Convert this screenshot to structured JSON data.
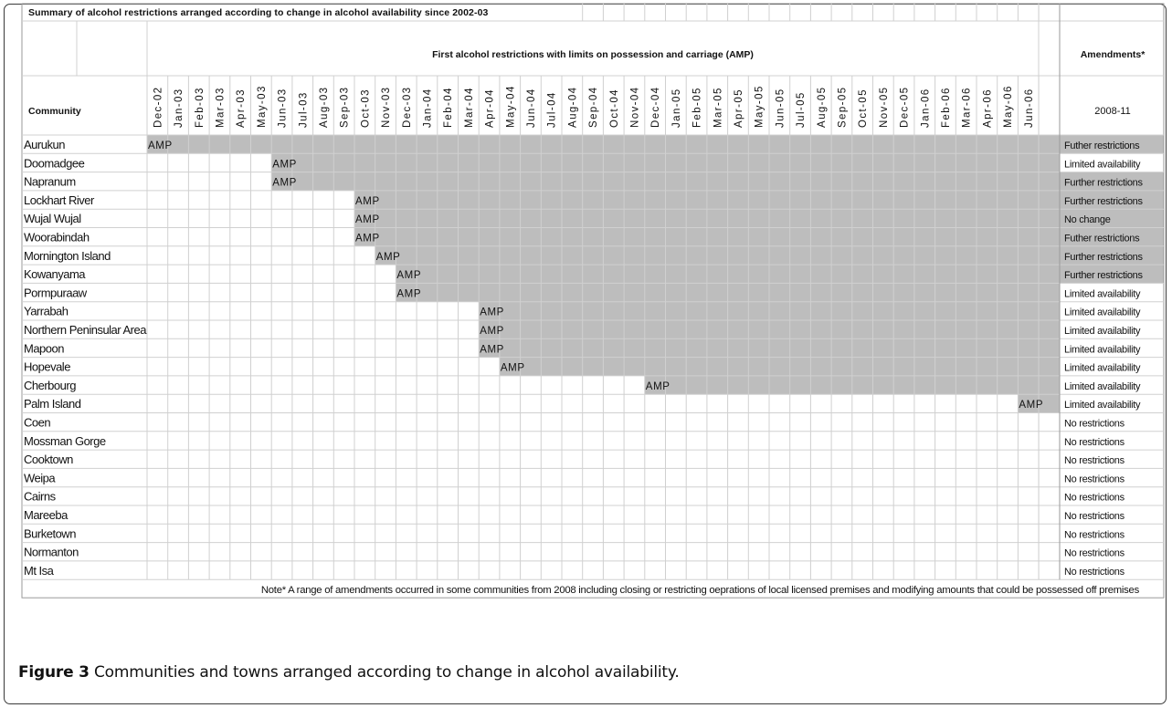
{
  "table": {
    "title": "Summary of alcohol restrictions arranged according to change in alcohol availability since 2002-03",
    "group_header": "First alcohol restrictions with limits on possession and carriage (AMP)",
    "amendments_header": "Amendments*",
    "community_header": "Community",
    "amendments_period": "2008-11",
    "months": [
      "Dec-02",
      "Jan-03",
      "Feb-03",
      "Mar-03",
      "Apr-03",
      "May-03",
      "Jun-03",
      "Jul-03",
      "Aug-03",
      "Sep-03",
      "Oct-03",
      "Nov-03",
      "Dec-03",
      "Jan-04",
      "Feb-04",
      "Mar-04",
      "Apr-04",
      "May-04",
      "Jun-04",
      "Jul-04",
      "Aug-04",
      "Sep-04",
      "Oct-04",
      "Nov-04",
      "Dec-04",
      "Jan-05",
      "Feb-05",
      "Mar-05",
      "Apr-05",
      "May-05",
      "Jun-05",
      "Jul-05",
      "Aug-05",
      "Sep-05",
      "Oct-05",
      "Nov-05",
      "Dec-05",
      "Jan-06",
      "Feb-06",
      "Mar-06",
      "Apr-06",
      "May-06",
      "Jun-06"
    ],
    "marker_label": "AMP",
    "shade_color": "#bdbdbd",
    "rows": [
      {
        "community": "Aurukun",
        "start": "Dec-02",
        "amendment": "Futher restrictions",
        "amendment_shaded": true
      },
      {
        "community": "Doomadgee",
        "start": "Jun-03",
        "amendment": "Limited availability",
        "amendment_shaded": false
      },
      {
        "community": "Napranum",
        "start": "Jun-03",
        "amendment": "Further restrictions",
        "amendment_shaded": true
      },
      {
        "community": "Lockhart River",
        "start": "Oct-03",
        "amendment": "Further restrictions",
        "amendment_shaded": true
      },
      {
        "community": "Wujal Wujal",
        "start": "Oct-03",
        "amendment": "No change",
        "amendment_shaded": true
      },
      {
        "community": "Woorabindah",
        "start": "Oct-03",
        "amendment": "Futher restrictions",
        "amendment_shaded": true
      },
      {
        "community": "Mornington Island",
        "start": "Nov-03",
        "amendment": "Further restrictions",
        "amendment_shaded": true
      },
      {
        "community": "Kowanyama",
        "start": "Dec-03",
        "amendment": "Further restrictions",
        "amendment_shaded": true
      },
      {
        "community": "Pormpuraaw",
        "start": "Dec-03",
        "amendment": "Limited availability",
        "amendment_shaded": false
      },
      {
        "community": "Yarrabah",
        "start": "Apr-04",
        "amendment": "Limited availability",
        "amendment_shaded": false
      },
      {
        "community": "Northern Peninsular Area",
        "start": "Apr-04",
        "amendment": "Limited availability",
        "amendment_shaded": false
      },
      {
        "community": "Mapoon",
        "start": "Apr-04",
        "amendment": "Limited availability",
        "amendment_shaded": false
      },
      {
        "community": "Hopevale",
        "start": "May-04",
        "amendment": "Limited availability",
        "amendment_shaded": false
      },
      {
        "community": "Cherbourg",
        "start": "Dec-04",
        "amendment": "Limited availability",
        "amendment_shaded": false
      },
      {
        "community": "Palm Island",
        "start": "Jun-06",
        "amendment": "Limited availability",
        "amendment_shaded": false
      },
      {
        "community": "Coen",
        "start": null,
        "amendment": "No restrictions",
        "amendment_shaded": false
      },
      {
        "community": "Mossman Gorge",
        "start": null,
        "amendment": "No restrictions",
        "amendment_shaded": false
      },
      {
        "community": "Cooktown",
        "start": null,
        "amendment": "No restrictions",
        "amendment_shaded": false
      },
      {
        "community": "Weipa",
        "start": null,
        "amendment": "No restrictions",
        "amendment_shaded": false
      },
      {
        "community": "Cairns",
        "start": null,
        "amendment": "No restrictions",
        "amendment_shaded": false
      },
      {
        "community": "Mareeba",
        "start": null,
        "amendment": "No restrictions",
        "amendment_shaded": false
      },
      {
        "community": "Burketown",
        "start": null,
        "amendment": "No restrictions",
        "amendment_shaded": false
      },
      {
        "community": "Normanton",
        "start": null,
        "amendment": "No restrictions",
        "amendment_shaded": false
      },
      {
        "community": "Mt Isa",
        "start": null,
        "amendment": "No restrictions",
        "amendment_shaded": false
      }
    ],
    "note": "Note* A range of amendments occurred in some communities from 2008 including closing or restricting oeprations of local licensed premises and modifying amounts that could be possessed off premises"
  },
  "caption": {
    "label": "Figure 3",
    "text": "Communities and towns arranged according to change in alcohol availability."
  }
}
